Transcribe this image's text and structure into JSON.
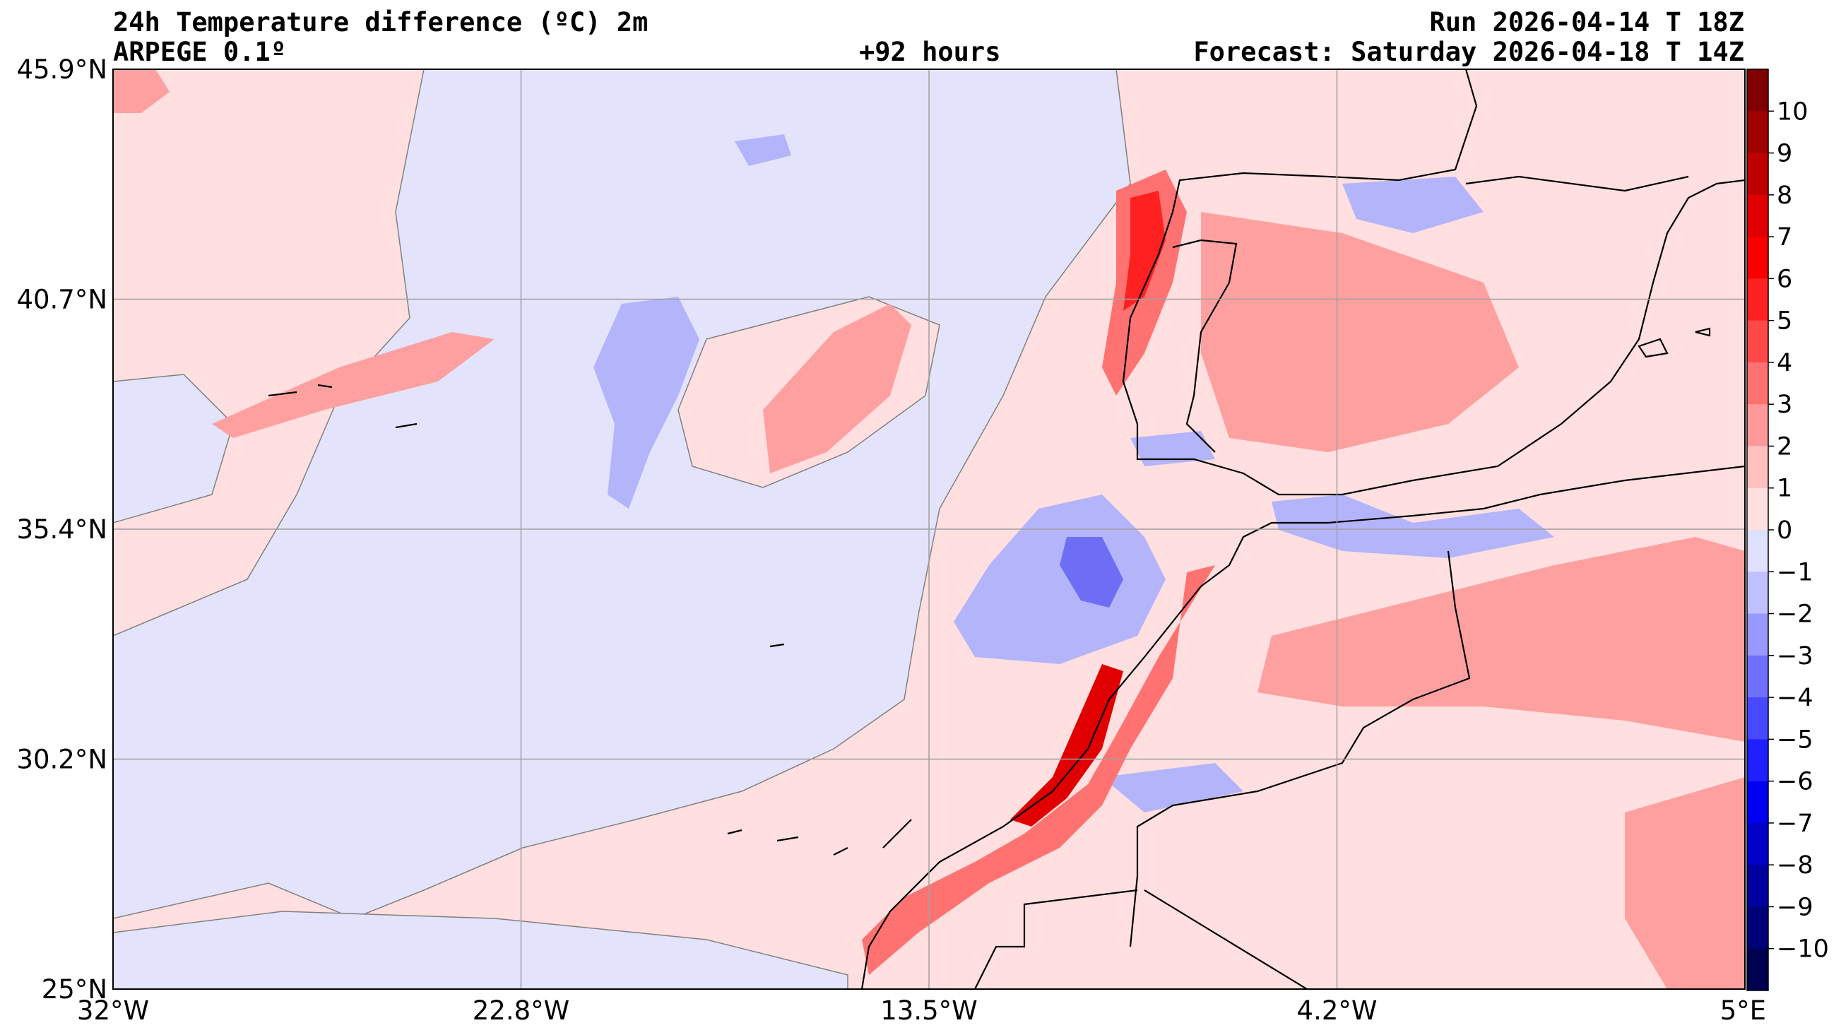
{
  "header": {
    "title_line1": "24h Temperature difference (ºC) 2m",
    "title_line2": "ARPEGE 0.1º",
    "lead_time": "+92 hours",
    "run": "Run 2026-04-14 T 18Z",
    "forecast": "Forecast: Saturday 2026-04-18 T 14Z"
  },
  "map": {
    "lon_ticks": [
      "32°W",
      "22.8°W",
      "13.5°W",
      "4.2°W",
      "5°E"
    ],
    "lat_ticks": [
      "45.9°N",
      "40.7°N",
      "35.4°N",
      "30.2°N",
      "25°N"
    ],
    "lon_range": [
      -32,
      5
    ],
    "lat_range": [
      25,
      45.9
    ],
    "background_colors": {
      "slight_warming": "#ffdfdf",
      "slight_cooling": "#e3e3fb"
    }
  },
  "colorbar": {
    "labels": [
      "10",
      "9",
      "8",
      "7",
      "6",
      "5",
      "4",
      "3",
      "2",
      "1",
      "0",
      "−1",
      "−2",
      "−3",
      "−4",
      "−5",
      "−6",
      "−7",
      "−8",
      "−9",
      "−10"
    ],
    "colors": [
      "#800000",
      "#a00000",
      "#c00000",
      "#e00000",
      "#f80000",
      "#ff2020",
      "#ff4848",
      "#ff7070",
      "#ff9898",
      "#ffc0c0",
      "#ffe0e0",
      "#e0e0ff",
      "#c0c0ff",
      "#9898ff",
      "#7070ff",
      "#4848ff",
      "#2020ff",
      "#0000f0",
      "#0000c8",
      "#0000a0",
      "#000078",
      "#000050"
    ]
  }
}
